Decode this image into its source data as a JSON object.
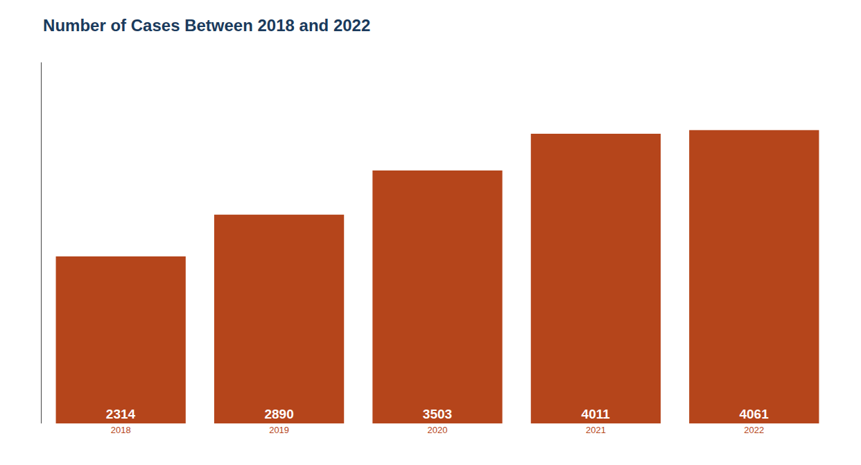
{
  "chart_data": {
    "type": "bar",
    "title": "Number of Cases Between 2018 and 2022",
    "categories": [
      "2018",
      "2019",
      "2020",
      "2021",
      "2022"
    ],
    "values": [
      2314,
      2890,
      3503,
      4011,
      4061
    ],
    "color": "#b5451b",
    "ylim": [
      0,
      5000
    ],
    "grid": false,
    "data_labels": true,
    "tick_labels": "x"
  }
}
